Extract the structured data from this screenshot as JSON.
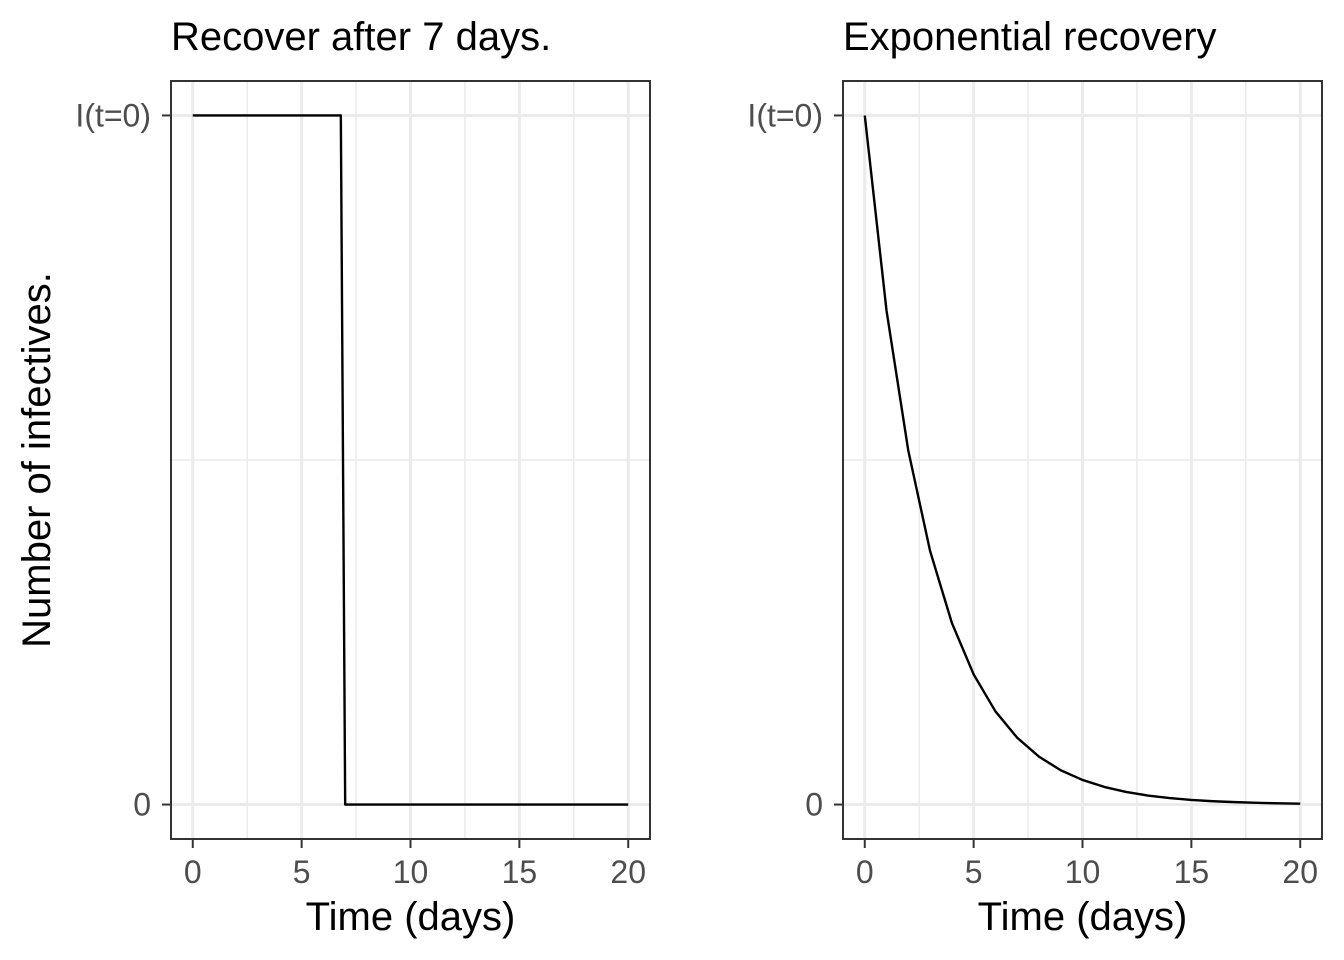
{
  "ylabel": "Number of infectives.",
  "chart_data": [
    {
      "type": "line",
      "title": "Recover after 7 days.",
      "xlabel": "Time (days)",
      "ylabel": "Number of infectives.",
      "xlim": [
        -1,
        21
      ],
      "ylim": [
        -0.05,
        1.05
      ],
      "x_ticks": [
        0,
        5,
        10,
        15,
        20
      ],
      "x_tick_labels": [
        "0",
        "5",
        "10",
        "15",
        "20"
      ],
      "x_minor_ticks": [
        2.5,
        7.5,
        12.5,
        17.5
      ],
      "y_ticks": [
        0,
        1
      ],
      "y_tick_labels": [
        "0",
        "I(t=0)"
      ],
      "y_minor_ticks": [
        0.5
      ],
      "grid": true,
      "series": [
        {
          "x": [
            0,
            6.8,
            7.0,
            20
          ],
          "y": [
            1,
            1,
            0,
            0
          ],
          "color": "#000000"
        }
      ]
    },
    {
      "type": "line",
      "title": "Exponential recovery",
      "xlabel": "Time (days)",
      "xlim": [
        -1,
        21
      ],
      "ylim": [
        -0.05,
        1.05
      ],
      "x_ticks": [
        0,
        5,
        10,
        15,
        20
      ],
      "x_tick_labels": [
        "0",
        "5",
        "10",
        "15",
        "20"
      ],
      "x_minor_ticks": [
        2.5,
        7.5,
        12.5,
        17.5
      ],
      "y_ticks": [
        0,
        1
      ],
      "y_tick_labels": [
        "0",
        "I(t=0)"
      ],
      "y_minor_ticks": [
        0.5
      ],
      "grid": true,
      "series": [
        {
          "x": [
            0,
            1,
            2,
            3,
            4,
            5,
            6,
            7,
            8,
            9,
            10,
            11,
            12,
            13,
            14,
            15,
            16,
            17,
            18,
            19,
            20
          ],
          "y": [
            1,
            0.7165,
            0.5134,
            0.3679,
            0.2636,
            0.1889,
            0.1353,
            0.097,
            0.0695,
            0.0498,
            0.0357,
            0.0256,
            0.0183,
            0.0131,
            0.0094,
            0.0067,
            0.0048,
            0.0035,
            0.0025,
            0.0018,
            0.0013
          ],
          "color": "#000000"
        }
      ]
    }
  ]
}
